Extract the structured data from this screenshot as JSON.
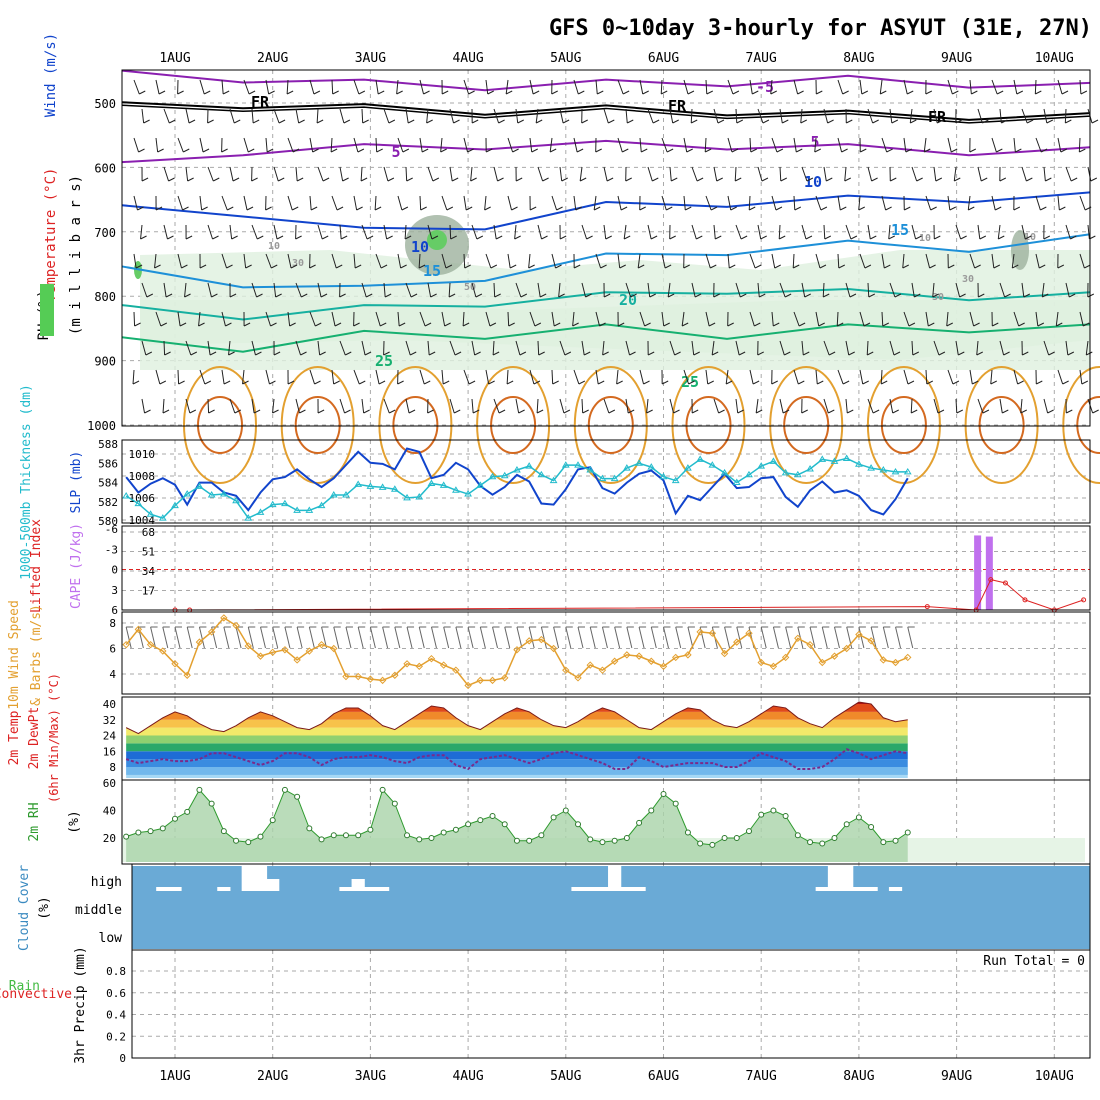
{
  "title": "GFS 0~10day 3-hourly for ASYUT (31E, 27N)",
  "dates": [
    "1AUG",
    "2AUG",
    "3AUG",
    "4AUG",
    "5AUG",
    "6AUG",
    "7AUG",
    "8AUG",
    "9AUG",
    "10AUG"
  ],
  "colors": {
    "frame": "#000000",
    "grid": "#aaaaaa",
    "purple": "#8a1fb0",
    "blue": "#1144cc",
    "cyan": "#22bbcc",
    "orange": "#e3a030",
    "green": "#44bb44",
    "red": "#dd2222",
    "cloud": "#6aaad6",
    "violet": "#c070ee"
  },
  "chart_data": [
    {
      "panel": "upper-air",
      "type": "contour",
      "ylabels": [
        "Wind (m/s)",
        "Temperature (°C)",
        "RH (%)",
        "(m i l l i b a r s)"
      ],
      "yticks": [
        "500",
        "600",
        "700",
        "800",
        "900",
        "1000"
      ],
      "contour_labels": [
        "FR",
        "FR",
        "FR",
        "-5",
        "5",
        "5",
        "10",
        "10",
        "15",
        "15",
        "20",
        "25",
        "25",
        "10",
        "30",
        "50",
        "10",
        "30",
        "30",
        "10"
      ],
      "temperature_lines": [
        {
          "label": "-5",
          "level": [
            456,
            462,
            470,
            474,
            470,
            468,
            464,
            470,
            475
          ]
        },
        {
          "label": "FR",
          "level": [
            505,
            502,
            508,
            512,
            510,
            513,
            518,
            520,
            522
          ]
        },
        {
          "label": "5",
          "level": [
            598,
            575,
            570,
            566,
            565,
            566,
            570,
            575,
            575
          ]
        },
        {
          "label": "10",
          "level": [
            665,
            670,
            700,
            690,
            660,
            655,
            650,
            648,
            645
          ]
        },
        {
          "label": "15",
          "level": [
            760,
            780,
            790,
            770,
            740,
            730,
            720,
            725,
            710
          ]
        },
        {
          "label": "20",
          "level": [
            820,
            830,
            820,
            810,
            800,
            790,
            795,
            800,
            800
          ]
        },
        {
          "label": "25",
          "level": [
            870,
            880,
            860,
            860,
            850,
            860,
            850,
            850,
            850
          ]
        }
      ]
    },
    {
      "panel": "thickness-slp",
      "type": "line",
      "ylabels": [
        "1000-500mb Thickness (dm)",
        "SLP (mb)"
      ],
      "left_ticks": [
        "588",
        "586",
        "584",
        "582",
        "580"
      ],
      "right_ticks": [
        "1010",
        "1008",
        "1006",
        "1004"
      ],
      "slp": [
        1007.9,
        1006.5,
        1007.3,
        1007.8,
        1007.2,
        1005.4,
        1007.4,
        1007.4,
        1006.5,
        1006.2,
        1004.9,
        1006.5,
        1007.7,
        1007.9,
        1008.6,
        1007.7,
        1007.0,
        1007.8,
        1009.0,
        1010.2,
        1009.2,
        1009.1,
        1008.6,
        1010.5,
        1010.2,
        1007.8,
        1008.1,
        1009.2,
        1008.6,
        1007.1,
        1006.3,
        1007.0,
        1008.1,
        1007.5,
        1005.5,
        1005.4,
        1006.8,
        1008.6,
        1008.8,
        1006.9,
        1006.4,
        1007.4,
        1008.2,
        1008.5,
        1007.6,
        1004.6,
        1006.2,
        1005.8,
        1007.0,
        1008.2,
        1006.9,
        1007.0,
        1007.8,
        1007.9,
        1006.1,
        1005.2,
        1006.7,
        1007.5,
        1006.5,
        1006.7,
        1006.2,
        1004.9,
        1004.5,
        1005.9,
        1007.8
      ],
      "thickness": [
        582.6,
        581.8,
        580.7,
        580.3,
        581.6,
        582.8,
        583.6,
        582.7,
        582.8,
        582.1,
        580.3,
        580.9,
        581.7,
        581.8,
        581.1,
        581.1,
        581.6,
        582.7,
        582.7,
        583.8,
        583.6,
        583.5,
        583.3,
        582.4,
        582.5,
        583.9,
        583.7,
        583.2,
        582.8,
        583.7,
        584.6,
        584.7,
        585.3,
        585.7,
        584.8,
        584.2,
        585.8,
        585.8,
        585.3,
        584.4,
        584.4,
        585.5,
        586.0,
        585.6,
        584.6,
        584.2,
        585.5,
        586.4,
        585.8,
        585.0,
        584.0,
        584.8,
        585.7,
        586.2,
        585.0,
        584.8,
        585.4,
        586.4,
        586.2,
        586.5,
        585.9,
        585.5,
        585.3,
        585.1,
        585.1
      ]
    },
    {
      "panel": "instability",
      "type": "bar",
      "ylabels": [
        "Lifted Index",
        "CAPE (J/kg)"
      ],
      "left_ticks": [
        "-6",
        "-3",
        "0",
        "3",
        "6"
      ],
      "right_ticks": [
        "68",
        "51",
        "34",
        "17"
      ],
      "cape_bars": [
        {
          "x": 8.21,
          "value": 65
        },
        {
          "x": 8.33,
          "value": 64
        }
      ],
      "lifted_index": [
        {
          "x": 0.0,
          "value": 6
        },
        {
          "x": 0.15,
          "value": 6
        },
        {
          "x": 7.7,
          "value": 5.5
        },
        {
          "x": 8.2,
          "value": 6
        },
        {
          "x": 8.35,
          "value": 1.5
        },
        {
          "x": 8.5,
          "value": 2
        },
        {
          "x": 8.7,
          "value": 4.5
        },
        {
          "x": 9.0,
          "value": 6
        },
        {
          "x": 9.3,
          "value": 4.5
        }
      ]
    },
    {
      "panel": "surface-wind",
      "type": "line",
      "ylabels": [
        "10m Wind Speed",
        "& Barbs (m/s)"
      ],
      "ticks": [
        "8",
        "6",
        "4"
      ],
      "speed": [
        6.3,
        7.5,
        6.3,
        5.8,
        4.8,
        3.9,
        6.5,
        7.3,
        8.4,
        7.8,
        6.2,
        5.4,
        5.7,
        5.9,
        5.1,
        5.8,
        6.3,
        6.0,
        3.8,
        3.8,
        3.6,
        3.5,
        3.9,
        4.8,
        4.6,
        5.2,
        4.7,
        4.3,
        3.1,
        3.5,
        3.5,
        3.7,
        5.9,
        6.6,
        6.7,
        6.0,
        4.3,
        3.7,
        4.7,
        4.3,
        5.0,
        5.5,
        5.4,
        5.0,
        4.6,
        5.3,
        5.5,
        7.3,
        7.2,
        5.6,
        6.5,
        7.2,
        4.9,
        4.6,
        5.3,
        6.8,
        6.3,
        4.9,
        5.4,
        6.0,
        7.1,
        6.6,
        5.1,
        4.9,
        5.3
      ]
    },
    {
      "panel": "surface-temperature",
      "type": "area",
      "ylabels": [
        "2m Temp",
        "2m DewPt",
        "(6hr Min/Max) (°C)"
      ],
      "ticks": [
        "40",
        "32",
        "24",
        "16",
        "8"
      ],
      "temperature": [
        28,
        25,
        29,
        33,
        36,
        34,
        30,
        27,
        26,
        29,
        33,
        36,
        34,
        31,
        28,
        27,
        30,
        35,
        38,
        38,
        34,
        29,
        27,
        31,
        35,
        39,
        38,
        33,
        29,
        27,
        31,
        35,
        38,
        36,
        32,
        29,
        28,
        31,
        35,
        38,
        36,
        32,
        28,
        27,
        31,
        35,
        38,
        37,
        32,
        29,
        28,
        31,
        35,
        39,
        38,
        33,
        30,
        28,
        33,
        37,
        41,
        40,
        33,
        31,
        32
      ],
      "dewpoint": [
        12,
        10,
        11,
        12,
        11,
        11,
        12,
        15,
        15,
        13,
        11,
        9,
        11,
        15,
        15,
        13,
        9,
        12,
        13,
        13,
        14,
        13,
        11,
        10,
        13,
        14,
        14,
        9,
        7,
        12,
        13,
        14,
        12,
        10,
        12,
        15,
        16,
        14,
        12,
        10,
        7,
        7,
        13,
        11,
        8,
        9,
        10,
        10,
        10,
        8,
        8,
        11,
        15,
        13,
        11,
        7,
        7,
        8,
        12,
        17,
        15,
        12,
        14,
        16,
        15
      ]
    },
    {
      "panel": "surface-rh",
      "type": "area",
      "ylabels": [
        "2m RH",
        "(%)"
      ],
      "ticks": [
        "60",
        "40",
        "20"
      ],
      "rh": [
        21,
        24,
        25,
        27,
        34,
        39,
        55,
        45,
        25,
        18,
        17,
        21,
        33,
        55,
        50,
        27,
        19,
        22,
        22,
        22,
        26,
        55,
        45,
        22,
        19,
        20,
        24,
        26,
        30,
        33,
        36,
        30,
        18,
        18,
        22,
        35,
        40,
        30,
        19,
        17,
        18,
        20,
        31,
        40,
        52,
        45,
        24,
        16,
        15,
        20,
        20,
        25,
        37,
        40,
        36,
        22,
        17,
        16,
        20,
        30,
        35,
        28,
        17,
        18,
        24
      ]
    },
    {
      "panel": "cloud-cover",
      "type": "bar",
      "ylabels": [
        "Cloud Cover",
        "(%)"
      ],
      "ticks": [
        "high",
        "middle",
        "low"
      ],
      "high_cloud": [
        0,
        0,
        0,
        4,
        4,
        0,
        0,
        0,
        4,
        0,
        25,
        25,
        12,
        0,
        0,
        0,
        0,
        0,
        4,
        12,
        4,
        4,
        0,
        0,
        0,
        0,
        0,
        0,
        0,
        0,
        0,
        0,
        0,
        0,
        0,
        0,
        0,
        4,
        4,
        4,
        25,
        4,
        4,
        0,
        0,
        0,
        0,
        0,
        0,
        0,
        0,
        0,
        0,
        0,
        0,
        0,
        0,
        4,
        25,
        25,
        4,
        4,
        0,
        4,
        0
      ]
    },
    {
      "panel": "precipitation",
      "type": "bar",
      "ylabels": [
        "Total / Rain",
        "Convective",
        "3hr Precip (mm)"
      ],
      "ticks": [
        "0.8",
        "0.6",
        "0.4",
        "0.2",
        "0"
      ],
      "run_total": "Run Total = 0",
      "precip": [
        0,
        0,
        0,
        0,
        0,
        0,
        0,
        0,
        0,
        0,
        0,
        0,
        0,
        0,
        0,
        0,
        0,
        0,
        0,
        0,
        0,
        0,
        0,
        0,
        0,
        0,
        0,
        0,
        0,
        0,
        0,
        0,
        0,
        0,
        0,
        0,
        0,
        0,
        0,
        0,
        0,
        0,
        0,
        0,
        0,
        0,
        0,
        0,
        0,
        0,
        0,
        0,
        0,
        0,
        0,
        0,
        0,
        0,
        0,
        0,
        0,
        0,
        0,
        0,
        0
      ]
    }
  ]
}
